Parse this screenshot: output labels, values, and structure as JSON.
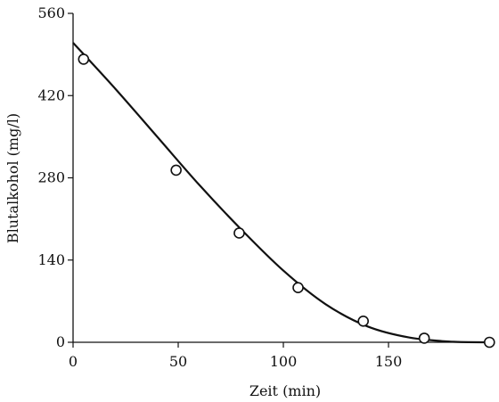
{
  "chart_data": {
    "type": "scatter",
    "xlabel": "Zeit (min)",
    "ylabel": "Blutalkohol (mg/l)",
    "xlim": [
      0,
      200
    ],
    "ylim": [
      0,
      560
    ],
    "x_ticks": [
      0,
      50,
      100,
      150
    ],
    "y_ticks": [
      0,
      140,
      280,
      420,
      560
    ],
    "x_tick_labels": [
      "0",
      "50",
      "100",
      "150"
    ],
    "y_tick_labels": [
      "0",
      "140",
      "280",
      "420",
      "560"
    ],
    "grid": false,
    "series": [
      {
        "marker": "open-circle",
        "points": [
          {
            "x": 5,
            "y": 482
          },
          {
            "x": 49,
            "y": 293
          },
          {
            "x": 79,
            "y": 186
          },
          {
            "x": 107,
            "y": 93
          },
          {
            "x": 138,
            "y": 36
          },
          {
            "x": 167,
            "y": 7
          },
          {
            "x": 198,
            "y": 0
          }
        ]
      },
      {
        "line": "fitted-curve",
        "points": [
          {
            "x": 0,
            "y": 510
          },
          {
            "x": 20,
            "y": 432
          },
          {
            "x": 40,
            "y": 350
          },
          {
            "x": 60,
            "y": 268
          },
          {
            "x": 80,
            "y": 192
          },
          {
            "x": 100,
            "y": 122
          },
          {
            "x": 120,
            "y": 65
          },
          {
            "x": 140,
            "y": 27
          },
          {
            "x": 160,
            "y": 8
          },
          {
            "x": 180,
            "y": 1
          },
          {
            "x": 198,
            "y": 0
          }
        ]
      }
    ]
  }
}
